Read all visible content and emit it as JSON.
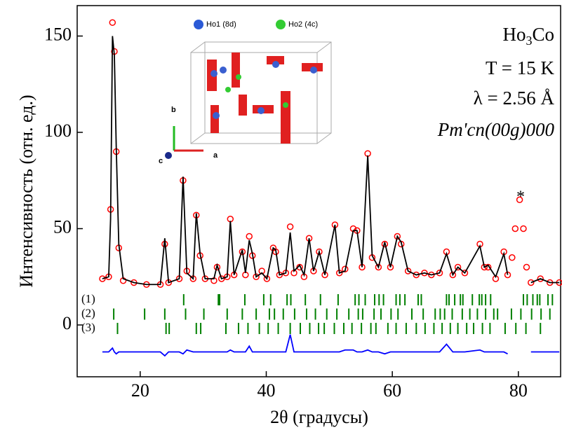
{
  "chart_data": {
    "type": "line",
    "x_label": "2θ (градусы)",
    "y_label": "Интенсивность (отн. ед.)",
    "xlim": [
      10,
      86.7
    ],
    "ylim": [
      -26.9,
      165.8
    ],
    "xticks": [
      20,
      40,
      60,
      80
    ],
    "yticks": [
      0,
      50,
      100,
      150
    ],
    "x": [
      14,
      15,
      15.3,
      15.6,
      15.9,
      16.2,
      16.6,
      17.3,
      19,
      21,
      23.2,
      23.9,
      24.5,
      26.2,
      26.8,
      27.4,
      28.4,
      28.9,
      29.5,
      30.3,
      31.7,
      32.2,
      32.9,
      33.8,
      34.3,
      34.9,
      36.2,
      36.7,
      37.3,
      37.8,
      38.4,
      39.3,
      40.1,
      41.1,
      41.5,
      42.1,
      43.1,
      43.8,
      44.4,
      45.3,
      46,
      46.8,
      47.5,
      48.4,
      49.3,
      50.9,
      51.6,
      52.5,
      53.8,
      54.4,
      55.2,
      56.1,
      56.8,
      57.8,
      58.8,
      59.7,
      60.8,
      61.4,
      62.5,
      63.8,
      65.1,
      66.2,
      67.5,
      68.6,
      69.6,
      70.4,
      71.5,
      73.9,
      74.6,
      75.2,
      76.4,
      77.7,
      78.3,
      79,
      79.5,
      80.2,
      80.8,
      81.3,
      82,
      83.5,
      85,
      86.5
    ],
    "series": [
      {
        "style": "circle",
        "color": "#ff0000",
        "values": [
          24,
          25,
          60,
          157,
          142,
          90,
          40,
          23,
          22,
          21,
          21,
          42,
          22,
          24,
          75,
          28,
          24,
          57,
          36,
          24,
          23,
          30,
          24,
          25,
          55,
          26,
          38,
          26,
          46,
          36,
          25,
          28,
          24,
          40,
          38,
          26,
          27,
          51,
          27,
          30,
          25,
          45,
          28,
          38,
          26,
          52,
          27,
          29,
          50,
          49,
          30,
          89,
          35,
          30,
          42,
          30,
          46,
          42,
          28,
          26,
          27,
          26,
          27,
          38,
          26,
          30,
          27,
          42,
          30,
          30,
          24,
          38,
          26,
          35,
          50,
          65,
          50,
          30,
          22,
          24,
          22,
          22
        ]
      },
      {
        "style": "line",
        "color": "#000000",
        "values": [
          24,
          25,
          55,
          150,
          140,
          92,
          42,
          24,
          22,
          21,
          21,
          45,
          22,
          24,
          77,
          27,
          24,
          58,
          37,
          24,
          24,
          31,
          24,
          25,
          54,
          26,
          39,
          27,
          44,
          37,
          25,
          27,
          24,
          40,
          39,
          26,
          27,
          48,
          28,
          31,
          26,
          45,
          28,
          38,
          26,
          52,
          27,
          28,
          49,
          49,
          30,
          88,
          36,
          30,
          43,
          30,
          46,
          43,
          28,
          26,
          27,
          26,
          27,
          37,
          26,
          30,
          27,
          41,
          30,
          31,
          25,
          37,
          26,
          null,
          null,
          null,
          null,
          null,
          22,
          24,
          22,
          22
        ]
      },
      {
        "style": "line",
        "color": "#0000ff",
        "values": [
          -14,
          -14,
          -13,
          -12,
          -14,
          -15,
          -14,
          -14,
          -14,
          -14,
          -14,
          -16,
          -14,
          -14,
          -15,
          -13,
          -14,
          -14,
          -14,
          -14,
          -14,
          -14,
          -14,
          -14,
          -13,
          -14,
          -14,
          -14,
          -11,
          -14,
          -14,
          -14,
          -14,
          -14,
          -14,
          -14,
          -14,
          -5,
          -14,
          -14,
          -14,
          -14,
          -14,
          -14,
          -14,
          -14,
          -14,
          -13,
          -13,
          -14,
          -14,
          -13,
          -14,
          -14,
          -15,
          -14,
          -14,
          -14,
          -14,
          -14,
          -14,
          -14,
          -14,
          -10,
          -14,
          -14,
          -14,
          -13,
          -14,
          -14,
          -14,
          -14,
          -15,
          null,
          null,
          null,
          null,
          null,
          -14,
          -14,
          -14,
          -14
        ]
      }
    ],
    "bragg": {
      "color": "#008000",
      "rows": [
        {
          "label": "(1)",
          "positions": [
            26.9,
            32.4,
            32.6,
            36.6,
            39.6,
            40.7,
            43.3,
            43.9,
            46.2,
            48.6,
            51.4,
            54.1,
            54.7,
            55.7,
            57.2,
            57.9,
            58.6,
            60.6,
            61.2,
            62,
            64.1,
            64.6,
            68.6,
            69,
            69.9,
            70.8,
            71.2,
            72.7,
            73.8,
            74.2,
            74.8,
            75.6,
            80.8,
            81.4,
            82.3,
            83,
            83.4,
            84.7,
            85.4
          ]
        },
        {
          "label": "(2)",
          "positions": [
            15.8,
            20.7,
            23.9,
            27.2,
            30.1,
            33.8,
            36.2,
            38.4,
            40.5,
            41.3,
            42.7,
            44.5,
            46.4,
            47.8,
            49.6,
            51.2,
            53.1,
            54.6,
            55.3,
            57.1,
            58.2,
            59.8,
            60.9,
            63.1,
            64.9,
            66.8,
            67.6,
            68.3,
            69.5,
            71.1,
            72.3,
            73.5,
            74.8,
            76.1,
            76.7,
            78.9,
            80.4,
            82.1,
            83.6,
            85
          ]
        },
        {
          "label": "(3)",
          "positions": [
            16.4,
            24.1,
            24.6,
            28.9,
            29.6,
            33.6,
            35.6,
            37.1,
            38.9,
            40.3,
            41.9,
            43.8,
            45.4,
            46.9,
            48.3,
            49.2,
            50.8,
            52.3,
            53.6,
            55.1,
            56.6,
            57.4,
            59.3,
            60.6,
            62.2,
            63.8,
            65.2,
            66.6,
            67.9,
            69.2,
            70.4,
            71.8,
            72.9,
            74.3,
            75.5,
            77.9,
            79.6,
            81.2,
            83.5
          ]
        }
      ]
    },
    "annotations": {
      "formula": [
        "Ho",
        "3",
        "Co"
      ],
      "temperature": "T = 15 K",
      "wavelength": "λ = 2.56 Å",
      "group": "Pm'cn(00g)000",
      "star": "*"
    },
    "inset": {
      "ho1": "Ho1 (8d)",
      "ho2": "Ho2 (4c)",
      "a": "a",
      "b": "b",
      "c": "c"
    }
  }
}
